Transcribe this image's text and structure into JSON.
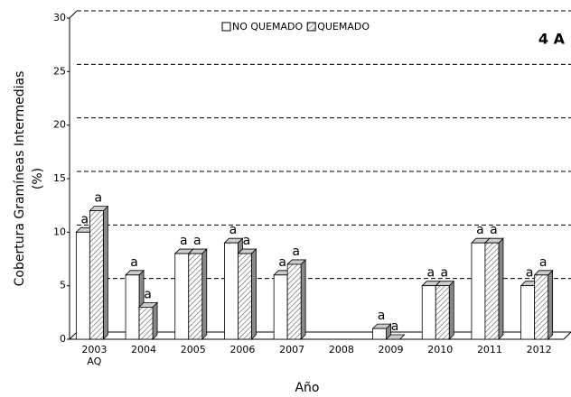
{
  "chart_data": {
    "type": "bar3d",
    "title": "4 A",
    "xlabel": "Año",
    "ylabel": "Cobertura Gramíneas Intermedias\n(%)",
    "categories": [
      "2003\nAQ",
      "2004",
      "2005",
      "2006",
      "2007",
      "2008",
      "2009",
      "2010",
      "2011",
      "2012"
    ],
    "series": [
      {
        "name": "NO QUEMADO",
        "color": "#ffffff",
        "pattern": "solid",
        "values": [
          10,
          6,
          8,
          9,
          6,
          null,
          1,
          5,
          9,
          5
        ],
        "letters": [
          "a",
          "a",
          "a",
          "a",
          "a",
          null,
          "a",
          "a",
          "a",
          "a"
        ]
      },
      {
        "name": "QUEMADO",
        "color": "#ffffff",
        "pattern": "hatch",
        "values": [
          12,
          3,
          8,
          8,
          7,
          null,
          0,
          5,
          9,
          6
        ],
        "letters": [
          "a",
          "a",
          "a",
          "a",
          "a",
          null,
          "a",
          "a",
          "a",
          "a"
        ]
      }
    ],
    "ylim": [
      0,
      30
    ],
    "yticks": [
      0,
      5,
      10,
      15,
      20,
      25,
      30
    ],
    "grid": true
  }
}
